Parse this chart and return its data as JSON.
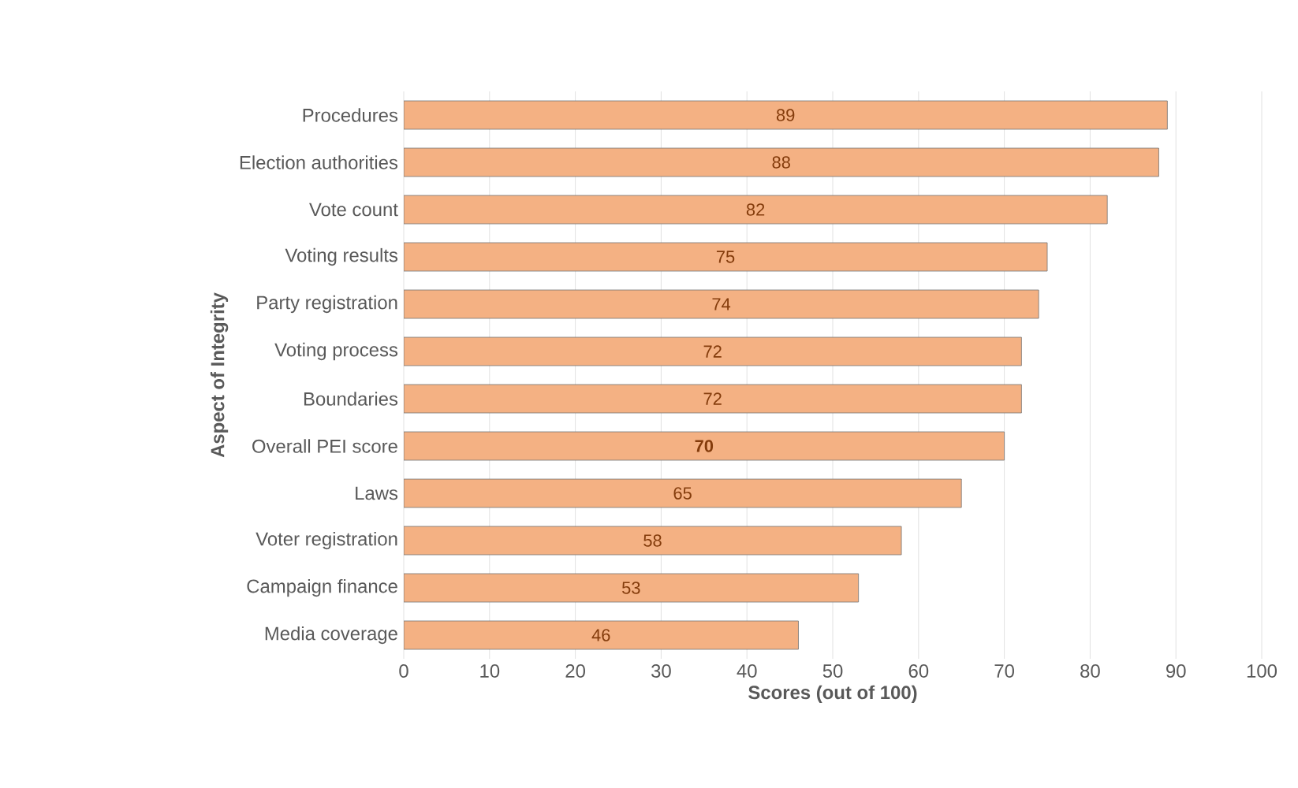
{
  "chart_data": {
    "type": "bar",
    "orientation": "horizontal",
    "xlabel": "Scores (out of 100)",
    "ylabel": "Aspect of Integrity",
    "categories": [
      "Procedures",
      "Election authorities",
      "Vote count",
      "Voting results",
      "Party registration",
      "Voting process",
      "Boundaries",
      "Overall PEI score",
      "Laws",
      "Voter registration",
      "Campaign finance",
      "Media coverage"
    ],
    "values": [
      89,
      88,
      82,
      75,
      74,
      72,
      72,
      70,
      65,
      58,
      53,
      46
    ],
    "color": "#f4b183",
    "value_labels": [
      "89",
      "88",
      "82",
      "75",
      "74",
      "72",
      "72",
      "**70**",
      "65",
      "58",
      "53",
      "46"
    ],
    "grid": "x",
    "xlim": [
      0,
      100
    ],
    "xticks": [
      0,
      10,
      20,
      30,
      40,
      50,
      60,
      70,
      80,
      90,
      100
    ]
  }
}
